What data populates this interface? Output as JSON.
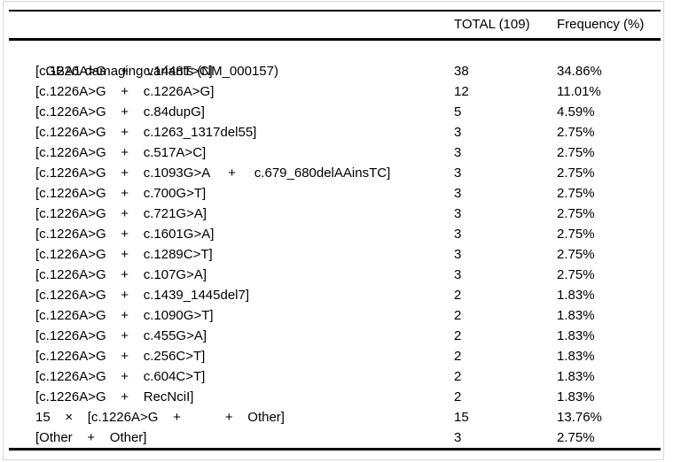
{
  "table": {
    "columns": [
      "",
      "TOTAL (109)",
      "Frequency (%)"
    ],
    "group_header": "GBA1 damaging variants (NM_000157)",
    "rows": [
      {
        "variant": "[c.1226A>G    +    c.1448T>C]",
        "total": "38",
        "frequency": "34.86%"
      },
      {
        "variant": "[c.1226A>G    +    c.1226A>G]",
        "total": "12",
        "frequency": "11.01%"
      },
      {
        "variant": "[c.1226A>G    +    c.84dupG]",
        "total": "5",
        "frequency": "4.59%"
      },
      {
        "variant": "[c.1226A>G    +    c.1263_1317del55]",
        "total": "3",
        "frequency": "2.75%"
      },
      {
        "variant": "[c.1226A>G    +    c.517A>C]",
        "total": "3",
        "frequency": "2.75%"
      },
      {
        "variant": "[c.1226A>G    +    c.1093G>A     +     c.679_680delAAinsTC]",
        "total": "3",
        "frequency": "2.75%"
      },
      {
        "variant": "[c.1226A>G    +    c.700G>T]",
        "total": "3",
        "frequency": "2.75%"
      },
      {
        "variant": "[c.1226A>G    +    c.721G>A]",
        "total": "3",
        "frequency": "2.75%"
      },
      {
        "variant": "[c.1226A>G    +    c.1601G>A]",
        "total": "3",
        "frequency": "2.75%"
      },
      {
        "variant": "[c.1226A>G    +    c.1289C>T]",
        "total": "3",
        "frequency": "2.75%"
      },
      {
        "variant": "[c.1226A>G    +    c.107G>A]",
        "total": "3",
        "frequency": "2.75%"
      },
      {
        "variant": "[c.1226A>G    +    c.1439_1445del7]",
        "total": "2",
        "frequency": "1.83%"
      },
      {
        "variant": "[c.1226A>G    +    c.1090G>T]",
        "total": "2",
        "frequency": "1.83%"
      },
      {
        "variant": "[c.1226A>G    +    c.455G>A]",
        "total": "2",
        "frequency": "1.83%"
      },
      {
        "variant": "[c.1226A>G    +    c.256C>T]",
        "total": "2",
        "frequency": "1.83%"
      },
      {
        "variant": "[c.1226A>G    +    c.604C>T]",
        "total": "2",
        "frequency": "1.83%"
      },
      {
        "variant": "[c.1226A>G    +    RecNciI]",
        "total": "2",
        "frequency": "1.83%"
      },
      {
        "variant": "15    ×    [c.1226A>G    +            +    Other]",
        "total": "15",
        "frequency": "13.76%"
      },
      {
        "variant": "[Other    +    Other]",
        "total": "3",
        "frequency": "2.75%"
      }
    ]
  }
}
